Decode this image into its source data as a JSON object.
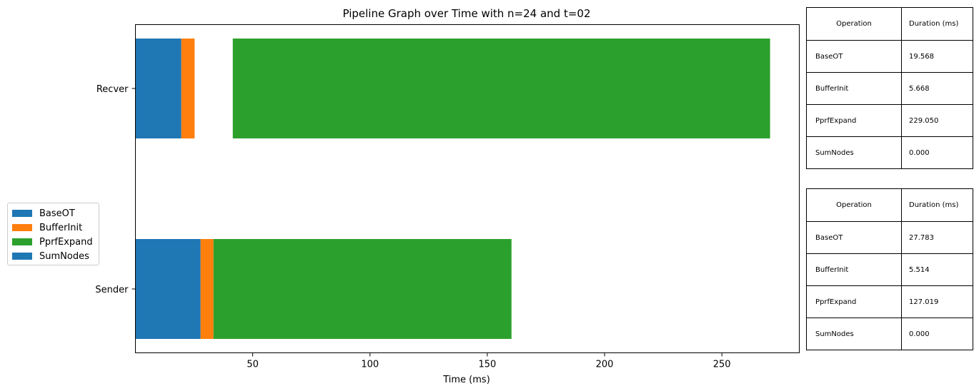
{
  "chart_data": {
    "type": "bar",
    "orientation": "horizontal",
    "stacked": true,
    "title": "Pipeline Graph over Time with n=24 and t=02",
    "xlabel": "Time (ms)",
    "ylabel": "",
    "categories": [
      "Sender",
      "Recver"
    ],
    "xlim": [
      0,
      283
    ],
    "xticks": [
      50,
      100,
      150,
      200,
      250
    ],
    "grid": false,
    "legend_position": "center-left",
    "series": [
      {
        "name": "BaseOT",
        "color": "#1f77b4",
        "start": [
          0,
          0
        ],
        "values": [
          27.783,
          19.568
        ]
      },
      {
        "name": "BufferInit",
        "color": "#ff7f0e",
        "start": [
          27.783,
          19.568
        ],
        "values": [
          5.514,
          5.668
        ]
      },
      {
        "name": "PprfExpand",
        "color": "#2ca02c",
        "start": [
          33.297,
          41.5
        ],
        "values": [
          127.019,
          229.05
        ]
      },
      {
        "name": "SumNodes",
        "color": "#1f77b4",
        "start": [
          160.316,
          270.55
        ],
        "values": [
          0.0,
          0.0
        ]
      }
    ]
  },
  "tables": {
    "header": [
      "Operation",
      "Duration (ms)"
    ],
    "recver": [
      [
        "BaseOT",
        "19.568"
      ],
      [
        "BufferInit",
        "5.668"
      ],
      [
        "PprfExpand",
        "229.050"
      ],
      [
        "SumNodes",
        "0.000"
      ]
    ],
    "sender": [
      [
        "BaseOT",
        "27.783"
      ],
      [
        "BufferInit",
        "5.514"
      ],
      [
        "PprfExpand",
        "127.019"
      ],
      [
        "SumNodes",
        "0.000"
      ]
    ]
  }
}
